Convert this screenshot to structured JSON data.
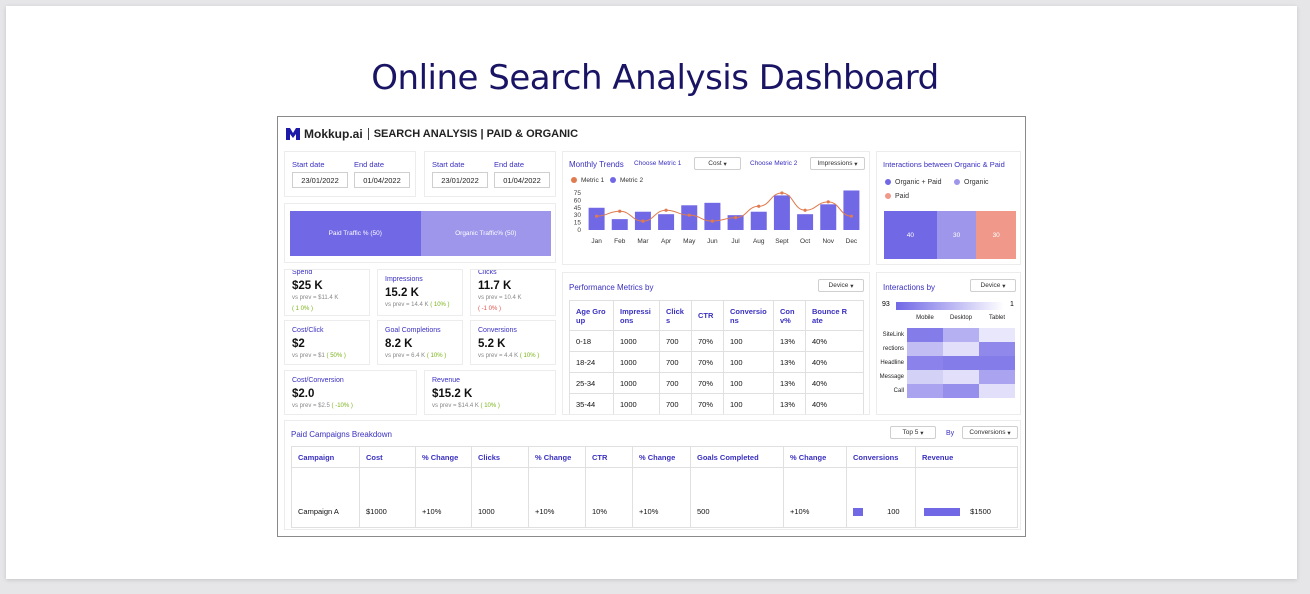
{
  "page_title": "Online Search Analysis Dashboard",
  "header": {
    "brand": "Mokkup.ai",
    "title": "SEARCH ANALYSIS | PAID & ORGANIC"
  },
  "date_filters": [
    {
      "start_label": "Start date",
      "end_label": "End date",
      "start": "23/01/2022",
      "end": "01/04/2022"
    },
    {
      "start_label": "Start date",
      "end_label": "End date",
      "start": "23/01/2022",
      "end": "01/04/2022"
    }
  ],
  "traffic_split": {
    "paid_label": "Paid Traffic % (50)",
    "organic_label": "Organic Traffic% (50)",
    "paid": 50,
    "organic": 50,
    "paid_color": "#7168e6",
    "organic_color": "#9d96ea"
  },
  "kpis": [
    {
      "label": "Spend",
      "value": "$25 K",
      "prev": "vs prev = $11.4 K",
      "change": "( 1 0% )",
      "trend": "pos"
    },
    {
      "label": "Impressions",
      "value": "15.2 K",
      "prev": "vs prev = 14.4 K",
      "change": "( 10% )",
      "trend": "pos"
    },
    {
      "label": "Clicks",
      "value": "11.7 K",
      "prev": "vs prev = 10.4 K",
      "change": "( -1 0% )",
      "trend": "neg"
    },
    {
      "label": "Cost/Click",
      "value": "$2",
      "prev": "vs prev = $1",
      "change": "( 50% )",
      "trend": "pos"
    },
    {
      "label": "Goal Completions",
      "value": "8.2 K",
      "prev": "vs prev = 6.4 K",
      "change": "( 10% )",
      "trend": "pos"
    },
    {
      "label": "Conversions",
      "value": "5.2 K",
      "prev": "vs prev = 4.4 K",
      "change": "( 10% )",
      "trend": "pos"
    },
    {
      "label": "Cost/Conversion",
      "value": "$2.0",
      "prev": "vs prev = $2.5",
      "change": "( -10% )",
      "trend": "pos"
    },
    {
      "label": "Revenue",
      "value": "$15.2 K",
      "prev": "vs prev = $14.4 K",
      "change": "( 10% )",
      "trend": "pos"
    }
  ],
  "monthly_trends": {
    "title": "Monthly Trends",
    "metric1_label": "Choose Metric 1",
    "metric1_value": "Cost",
    "metric2_label": "Choose Metric 2",
    "metric2_value": "Impressions",
    "legend": [
      "Metric 1",
      "Metric 2"
    ],
    "bar_color": "#7168e6",
    "line_color": "#e07b4f"
  },
  "chart_data": {
    "type": "bar",
    "categories": [
      "Jan",
      "Feb",
      "Mar",
      "Apr",
      "May",
      "Jun",
      "Jul",
      "Aug",
      "Sept",
      "Oct",
      "Nov",
      "Dec"
    ],
    "series": [
      {
        "name": "Metric 2",
        "type": "bar",
        "values": [
          45,
          22,
          37,
          32,
          50,
          55,
          30,
          37,
          70,
          32,
          52,
          80
        ]
      },
      {
        "name": "Metric 1",
        "type": "line",
        "values": [
          28,
          38,
          18,
          40,
          30,
          18,
          25,
          48,
          75,
          40,
          57,
          28
        ]
      }
    ],
    "yticks": [
      0,
      15,
      30,
      45,
      60,
      75
    ],
    "ylim": [
      0,
      85
    ]
  },
  "interactions": {
    "title": "Interactions between Organic & Paid",
    "legend": [
      {
        "label": "Organic + Paid",
        "color": "#7168e6"
      },
      {
        "label": "Organic",
        "color": "#9d96ea"
      },
      {
        "label": "Paid",
        "color": "#f0998a"
      }
    ],
    "values": [
      "40",
      "30",
      "30"
    ]
  },
  "performance": {
    "title": "Performance Metrics by",
    "dropdown": "Device",
    "headers": [
      "Age Gro up",
      "Impressi ons",
      "Click s",
      "CTR",
      "Conversio ns",
      "Con v%",
      "Bounce R ate"
    ],
    "rows": [
      [
        "0-18",
        "1000",
        "700",
        "70%",
        "100",
        "13%",
        "40%"
      ],
      [
        "18-24",
        "1000",
        "700",
        "70%",
        "100",
        "13%",
        "40%"
      ],
      [
        "25-34",
        "1000",
        "700",
        "70%",
        "100",
        "13%",
        "40%"
      ],
      [
        "35-44",
        "1000",
        "700",
        "70%",
        "100",
        "13%",
        "40%"
      ]
    ]
  },
  "heatmap": {
    "title": "Interactions by",
    "dropdown": "Device",
    "scale_min": "93",
    "scale_max": "1",
    "columns": [
      "Mobile",
      "Desktop",
      "Tablet"
    ],
    "rows": [
      "SiteLink",
      "rections",
      "Headline",
      "Message",
      "Call"
    ],
    "intensity": [
      [
        0.85,
        0.45,
        0.05
      ],
      [
        0.35,
        0.1,
        0.75
      ],
      [
        0.8,
        0.85,
        0.85
      ],
      [
        0.2,
        0.1,
        0.55
      ],
      [
        0.55,
        0.7,
        0.1
      ]
    ],
    "color": "#7168e6"
  },
  "campaigns": {
    "title": "Paid Campaigns Breakdown",
    "top_dropdown": "Top 5",
    "by_label": "By",
    "by_dropdown": "Conversions",
    "headers": [
      "Campaign",
      "Cost",
      "% Change",
      "Clicks",
      "% Change",
      "CTR",
      "% Change",
      "Goals Completed",
      "% Change",
      "Conversions",
      "Revenue"
    ],
    "rows": [
      {
        "campaign": "Campaign A",
        "cost": "$1000",
        "cost_change": "+10%",
        "clicks": "1000",
        "clicks_change": "+10%",
        "ctr": "10%",
        "ctr_change": "+10%",
        "goals": "500",
        "goals_change": "+10%",
        "conversions": "100",
        "revenue": "$1500"
      }
    ]
  }
}
